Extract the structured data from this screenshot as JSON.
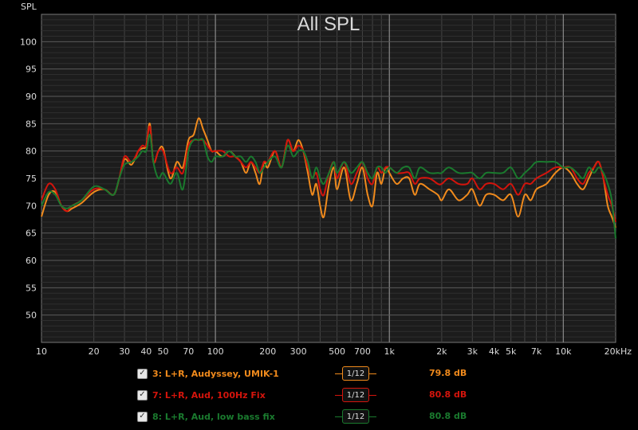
{
  "chart_data": {
    "type": "line",
    "title": "All SPL",
    "ylabel": "SPL",
    "xlabel": "",
    "x_scale": "log",
    "xlim": [
      10,
      20000
    ],
    "ylim": [
      45,
      105
    ],
    "y_ticks": [
      50,
      55,
      60,
      65,
      70,
      75,
      80,
      85,
      90,
      95,
      100
    ],
    "x_ticks": [
      {
        "v": 10,
        "label": "10"
      },
      {
        "v": 20,
        "label": "20"
      },
      {
        "v": 30,
        "label": "30"
      },
      {
        "v": 40,
        "label": "40"
      },
      {
        "v": 50,
        "label": "50"
      },
      {
        "v": 70,
        "label": "70"
      },
      {
        "v": 100,
        "label": "100"
      },
      {
        "v": 200,
        "label": "200"
      },
      {
        "v": 300,
        "label": "300"
      },
      {
        "v": 500,
        "label": "500"
      },
      {
        "v": 700,
        "label": "700"
      },
      {
        "v": 1000,
        "label": "1k"
      },
      {
        "v": 2000,
        "label": "2k"
      },
      {
        "v": 3000,
        "label": "3k"
      },
      {
        "v": 4000,
        "label": "4k"
      },
      {
        "v": 5000,
        "label": "5k"
      },
      {
        "v": 7000,
        "label": "7k"
      },
      {
        "v": 10000,
        "label": "10k"
      },
      {
        "v": 20000,
        "label": "20kHz"
      }
    ],
    "grid": true,
    "series": [
      {
        "name": "3: L+R, Audyssey, UMIK-1",
        "color": "#f08a1c",
        "x": [
          10,
          11,
          12,
          13,
          14,
          15,
          17,
          20,
          23,
          26,
          28,
          30,
          33,
          36,
          38,
          40,
          42,
          44,
          47,
          50,
          55,
          60,
          65,
          70,
          75,
          80,
          85,
          90,
          95,
          100,
          110,
          120,
          130,
          140,
          150,
          160,
          170,
          180,
          190,
          200,
          220,
          240,
          260,
          280,
          300,
          320,
          340,
          360,
          380,
          400,
          420,
          450,
          480,
          500,
          550,
          600,
          650,
          700,
          750,
          800,
          850,
          900,
          950,
          1000,
          1100,
          1200,
          1300,
          1400,
          1500,
          1700,
          1900,
          2000,
          2200,
          2500,
          2800,
          3000,
          3300,
          3600,
          4000,
          4500,
          5000,
          5500,
          6000,
          6500,
          7000,
          8000,
          9000,
          10000,
          11000,
          12000,
          13000,
          14000,
          15000,
          16000,
          17000,
          18000,
          19000,
          20000
        ],
        "y": [
          68,
          72,
          72.5,
          70,
          69,
          69.5,
          70.5,
          72.5,
          73,
          72,
          75,
          78.5,
          77.5,
          80,
          80.5,
          81,
          85,
          78,
          80,
          80.5,
          75,
          78,
          77,
          82,
          83,
          86,
          84,
          82,
          80,
          80,
          79,
          80,
          79,
          78,
          76,
          78,
          76,
          74,
          78,
          77,
          80,
          77,
          82,
          80,
          82,
          80,
          76,
          72,
          74,
          70,
          68,
          74,
          77,
          73,
          77,
          71,
          74,
          77,
          72,
          70,
          76,
          74,
          77,
          76,
          74,
          75,
          75,
          72,
          74,
          73,
          72,
          71,
          73,
          71,
          72,
          73,
          70,
          72,
          72,
          71,
          72,
          68,
          72,
          71,
          73,
          74,
          76,
          77,
          76,
          74,
          73,
          75,
          77,
          78,
          75,
          70,
          68,
          66
        ]
      },
      {
        "name": "7: L+R, Aud, 100Hz Fix",
        "color": "#d4140c",
        "x": [
          10,
          11,
          12,
          13,
          14,
          15,
          17,
          20,
          23,
          26,
          28,
          30,
          33,
          36,
          38,
          40,
          42,
          44,
          47,
          50,
          55,
          60,
          65,
          70,
          75,
          80,
          85,
          90,
          95,
          100,
          110,
          120,
          130,
          140,
          150,
          160,
          170,
          180,
          190,
          200,
          220,
          240,
          260,
          280,
          300,
          320,
          340,
          360,
          380,
          400,
          420,
          450,
          480,
          500,
          550,
          600,
          650,
          700,
          750,
          800,
          850,
          900,
          950,
          1000,
          1100,
          1200,
          1300,
          1400,
          1500,
          1700,
          1900,
          2000,
          2200,
          2500,
          2800,
          3000,
          3300,
          3600,
          4000,
          4500,
          5000,
          5500,
          6000,
          6500,
          7000,
          8000,
          9000,
          10000,
          11000,
          12000,
          13000,
          14000,
          15000,
          16000,
          17000,
          18000,
          19000,
          20000
        ],
        "y": [
          71,
          74,
          73,
          70,
          69,
          70,
          71,
          73,
          73,
          72,
          75,
          79,
          78,
          80,
          81,
          81,
          84.5,
          78,
          80,
          80,
          76,
          77,
          76,
          81,
          82,
          82,
          82,
          81,
          80,
          80,
          80,
          79,
          79,
          78,
          77,
          78,
          77,
          76,
          78,
          78,
          80,
          77,
          82,
          80,
          81,
          80,
          77,
          75,
          76,
          73,
          72,
          76,
          78,
          75,
          78,
          74,
          76,
          78,
          75,
          74,
          77,
          76,
          77,
          77,
          76,
          76,
          76,
          74,
          75,
          75,
          74,
          74,
          75,
          74,
          74,
          75,
          73,
          74,
          74,
          73,
          74,
          72,
          74,
          74,
          75,
          76,
          77,
          77,
          77,
          75,
          74,
          76,
          77,
          78,
          75,
          72,
          70,
          67
        ]
      },
      {
        "name": "8: L+R, Aud, low bass fix",
        "color": "#1a7a2e",
        "x": [
          10,
          11,
          12,
          13,
          14,
          15,
          17,
          20,
          23,
          26,
          28,
          30,
          33,
          36,
          38,
          40,
          42,
          44,
          47,
          50,
          55,
          60,
          65,
          70,
          75,
          80,
          85,
          90,
          95,
          100,
          110,
          120,
          130,
          140,
          150,
          160,
          170,
          180,
          190,
          200,
          220,
          240,
          260,
          280,
          300,
          320,
          340,
          360,
          380,
          400,
          420,
          450,
          480,
          500,
          550,
          600,
          650,
          700,
          750,
          800,
          850,
          900,
          950,
          1000,
          1100,
          1200,
          1300,
          1400,
          1500,
          1700,
          1900,
          2000,
          2200,
          2500,
          2800,
          3000,
          3300,
          3600,
          4000,
          4500,
          5000,
          5500,
          6000,
          6500,
          7000,
          8000,
          9000,
          10000,
          11000,
          12000,
          13000,
          14000,
          15000,
          16000,
          17000,
          18000,
          19000,
          20000
        ],
        "y": [
          70,
          72.5,
          72,
          70,
          69.5,
          70,
          71,
          73.5,
          73,
          72,
          75,
          77.5,
          78,
          79,
          80,
          80,
          83,
          78,
          75,
          76,
          74,
          76,
          73,
          80,
          82,
          82,
          82,
          79,
          78,
          79,
          79,
          80,
          79,
          79,
          78,
          79,
          78,
          76,
          77,
          78,
          79,
          77,
          81,
          79,
          80,
          80,
          78,
          75,
          77,
          75,
          74,
          76,
          78,
          76,
          78,
          76,
          77,
          78,
          76,
          75,
          77,
          77,
          76,
          77,
          76,
          77,
          77,
          75,
          77,
          76,
          76,
          76,
          77,
          76,
          76,
          76,
          75,
          76,
          76,
          76,
          77,
          75,
          76,
          77,
          78,
          78,
          78,
          77,
          77,
          76,
          75,
          77,
          76,
          77,
          76,
          74,
          71,
          64
        ]
      }
    ]
  },
  "legend": {
    "smoothing_num": "1",
    "smoothing_den": "12",
    "entries": [
      {
        "label": "3: L+R, Audyssey, UMIK-1",
        "value": "79.8 dB",
        "color": "#f08a1c"
      },
      {
        "label": "7: L+R, Aud, 100Hz Fix",
        "value": "80.8 dB",
        "color": "#d4140c"
      },
      {
        "label": "8: L+R, Aud, low bass fix",
        "value": "80.8 dB",
        "color": "#1a7a2e"
      }
    ]
  }
}
